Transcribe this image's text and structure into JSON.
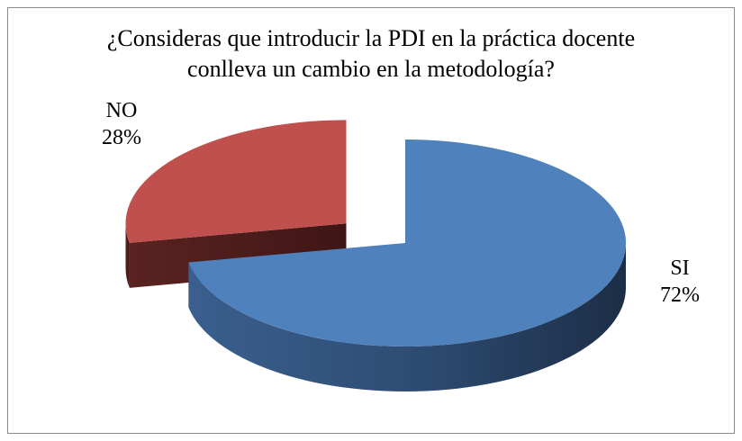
{
  "chart_data": {
    "type": "pie",
    "title": "¿Consideras que introducir la PDI en la práctica docente conlleva un cambio en la metodología?",
    "categories": [
      "SI",
      "NO"
    ],
    "values": [
      72,
      28
    ],
    "value_labels": [
      "72%",
      "28%"
    ],
    "colors": [
      "#4f81bd",
      "#c0504d"
    ]
  }
}
